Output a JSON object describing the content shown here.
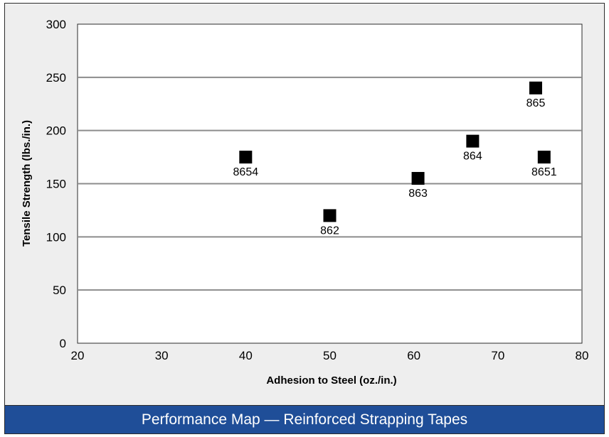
{
  "caption": "Performance Map — Reinforced Strapping Tapes",
  "colors": {
    "caption_background": "#1f4e98",
    "caption_text": "#ffffff",
    "frame_background": "#eeeeee",
    "plot_background": "#ffffff",
    "gridline": "#8c8c8c",
    "marker": "#000000"
  },
  "chart_data": {
    "type": "scatter",
    "title": "",
    "xlabel": "Adhesion to Steel (oz./in.)",
    "ylabel": "Tensile Strength (lbs./in.)",
    "xlim": [
      20,
      80
    ],
    "ylim": [
      0,
      300
    ],
    "x_ticks": [
      "20",
      "30",
      "40",
      "50",
      "60",
      "70",
      "80"
    ],
    "y_ticks": [
      "0",
      "50",
      "100",
      "150",
      "200",
      "250",
      "300"
    ],
    "grid": "horizontal",
    "marker": "square",
    "points": [
      {
        "label": "8654",
        "x": 40,
        "y": 175
      },
      {
        "label": "862",
        "x": 50,
        "y": 120
      },
      {
        "label": "863",
        "x": 60.5,
        "y": 155
      },
      {
        "label": "864",
        "x": 67,
        "y": 190
      },
      {
        "label": "865",
        "x": 74.5,
        "y": 240
      },
      {
        "label": "8651",
        "x": 75.5,
        "y": 175
      }
    ]
  }
}
